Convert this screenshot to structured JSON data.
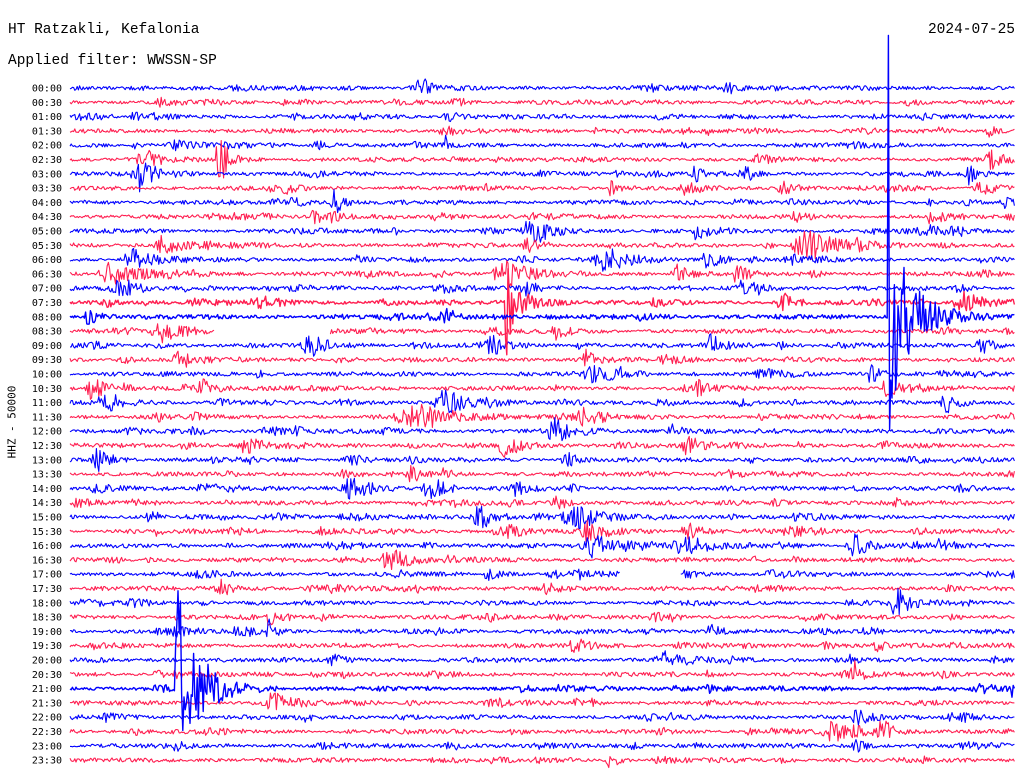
{
  "chart_data": {
    "type": "line",
    "title": "HT Ratzakli, Kefalonia",
    "date": "2024-07-25",
    "subtitle": "Applied filter: WWSSN-SP",
    "ylabel": "HHZ - 50000",
    "xlabel": "",
    "row_minutes": 30,
    "grid": false,
    "legend": "none",
    "colors": [
      "#0000ff",
      "#ff1e50"
    ],
    "rows": [
      "00:00",
      "00:30",
      "01:00",
      "01:30",
      "02:00",
      "02:30",
      "03:00",
      "03:30",
      "04:00",
      "04:30",
      "05:00",
      "05:30",
      "06:00",
      "06:30",
      "07:00",
      "07:30",
      "08:00",
      "08:30",
      "09:00",
      "09:30",
      "10:00",
      "10:30",
      "11:00",
      "11:30",
      "12:00",
      "12:30",
      "13:00",
      "13:30",
      "14:00",
      "14:30",
      "15:00",
      "15:30",
      "16:00",
      "16:30",
      "17:00",
      "17:30",
      "18:00",
      "18:30",
      "19:00",
      "19:30",
      "20:00",
      "20:30",
      "21:00",
      "21:30",
      "22:00",
      "22:30",
      "23:00",
      "23:30"
    ],
    "events": [
      {
        "time": "00:10:57",
        "amp": 6,
        "duration_s": 50
      },
      {
        "time": "00:32:42",
        "amp": 2,
        "duration_s": 40
      },
      {
        "time": "01:27:00",
        "amp": 2,
        "duration_s": 30
      },
      {
        "time": "01:59:03",
        "amp": 3,
        "duration_s": 40
      },
      {
        "time": "02:11:54",
        "amp": 5,
        "duration_s": 6
      },
      {
        "time": "02:34:36",
        "amp": 16,
        "duration_s": 40
      },
      {
        "time": "02:59:03",
        "amp": 6,
        "duration_s": 60
      },
      {
        "time": "03:01:54",
        "amp": 6,
        "duration_s": 90
      },
      {
        "time": "03:19:42",
        "amp": 4,
        "duration_s": 40
      },
      {
        "time": "03:21:24",
        "amp": 6,
        "duration_s": 20
      },
      {
        "time": "03:28:24",
        "amp": 5,
        "duration_s": 40
      },
      {
        "time": "03:47:00",
        "amp": 4,
        "duration_s": 40
      },
      {
        "time": "03:49:22",
        "amp": 4,
        "duration_s": 40
      },
      {
        "time": "03:52:24",
        "amp": 3,
        "duration_s": 60
      },
      {
        "time": "04:08:15",
        "amp": 8,
        "duration_s": 40
      },
      {
        "time": "04:29:31",
        "amp": 4,
        "duration_s": 30
      },
      {
        "time": "04:37:37",
        "amp": 4,
        "duration_s": 40
      },
      {
        "time": "04:57:08",
        "amp": 4,
        "duration_s": 60
      },
      {
        "time": "05:14:17",
        "amp": 6,
        "duration_s": 90
      },
      {
        "time": "05:19:42",
        "amp": 5,
        "duration_s": 60
      },
      {
        "time": "05:27:56",
        "amp": 3,
        "duration_s": 60
      },
      {
        "time": "05:32:32",
        "amp": 5,
        "duration_s": 120
      },
      {
        "time": "05:44:17",
        "amp": 4,
        "duration_s": 60
      },
      {
        "time": "05:52:51",
        "amp": 8,
        "duration_s": 150
      },
      {
        "time": "06:01:35",
        "amp": 5,
        "duration_s": 120
      },
      {
        "time": "06:16:30",
        "amp": 5,
        "duration_s": 120
      },
      {
        "time": "06:20:00",
        "amp": 4,
        "duration_s": 60
      },
      {
        "time": "06:30:48",
        "amp": 5,
        "duration_s": 120
      },
      {
        "time": "06:43:20",
        "amp": 6,
        "duration_s": 120
      },
      {
        "time": "06:49:03",
        "amp": 5,
        "duration_s": 60
      },
      {
        "time": "06:50:57",
        "amp": 4,
        "duration_s": 60
      },
      {
        "time": "07:01:16",
        "amp": 6,
        "duration_s": 90
      },
      {
        "time": "07:14:17",
        "amp": 4,
        "duration_s": 60
      },
      {
        "time": "07:21:07",
        "amp": 4,
        "duration_s": 60
      },
      {
        "time": "07:43:49",
        "amp": 50,
        "duration_s": 70
      },
      {
        "time": "07:52:24",
        "amp": 5,
        "duration_s": 60
      },
      {
        "time": "07:57:56",
        "amp": 5,
        "duration_s": 120
      },
      {
        "time": "08:00:19",
        "amp": 5,
        "duration_s": 60
      },
      {
        "time": "08:25:58",
        "amp": 170,
        "duration_s": 90
      },
      {
        "time": "08:32:32",
        "amp": 5,
        "duration_s": 120
      },
      {
        "time": "08:45:14",
        "amp": 4,
        "duration_s": 60
      },
      {
        "time": "09:07:18",
        "amp": 6,
        "duration_s": 90
      },
      {
        "time": "09:13:10",
        "amp": 5,
        "duration_s": 60
      },
      {
        "time": "09:20:10",
        "amp": 6,
        "duration_s": 60
      },
      {
        "time": "09:28:44",
        "amp": 4,
        "duration_s": 60
      },
      {
        "time": "09:33:10",
        "amp": 4,
        "duration_s": 60
      },
      {
        "time": "09:46:11",
        "amp": 5,
        "duration_s": 60
      },
      {
        "time": "10:16:11",
        "amp": 5,
        "duration_s": 120
      },
      {
        "time": "10:25:14",
        "amp": 5,
        "duration_s": 60
      },
      {
        "time": "10:30:29",
        "amp": 6,
        "duration_s": 60
      },
      {
        "time": "10:33:58",
        "amp": 5,
        "duration_s": 60
      },
      {
        "time": "10:49:42",
        "amp": 4,
        "duration_s": 60
      },
      {
        "time": "10:55:43",
        "amp": 5,
        "duration_s": 60
      },
      {
        "time": "11:00:48",
        "amp": 6,
        "duration_s": 90
      },
      {
        "time": "11:11:26",
        "amp": 7,
        "duration_s": 120
      },
      {
        "time": "11:27:37",
        "amp": 6,
        "duration_s": 60
      },
      {
        "time": "11:40:10",
        "amp": 6,
        "duration_s": 240
      },
      {
        "time": "11:46:02",
        "amp": 4,
        "duration_s": 60
      },
      {
        "time": "12:15:05",
        "amp": 6,
        "duration_s": 90
      },
      {
        "time": "12:18:53",
        "amp": 4,
        "duration_s": 60
      },
      {
        "time": "12:35:14",
        "amp": 5,
        "duration_s": 90
      },
      {
        "time": "12:43:30",
        "amp": 5,
        "duration_s": 90
      },
      {
        "time": "12:49:22",
        "amp": 5,
        "duration_s": 60
      },
      {
        "time": "13:00:38",
        "amp": 6,
        "duration_s": 70
      },
      {
        "time": "13:15:33",
        "amp": 4,
        "duration_s": 60
      },
      {
        "time": "13:40:38",
        "amp": 4,
        "duration_s": 60
      },
      {
        "time": "14:08:34",
        "amp": 6,
        "duration_s": 90
      },
      {
        "time": "14:11:07",
        "amp": 6,
        "duration_s": 90
      },
      {
        "time": "14:13:58",
        "amp": 4,
        "duration_s": 60
      },
      {
        "time": "14:45:14",
        "amp": 4,
        "duration_s": 60
      },
      {
        "time": "15:02:23",
        "amp": 4,
        "duration_s": 60
      },
      {
        "time": "15:12:42",
        "amp": 6,
        "duration_s": 90
      },
      {
        "time": "15:15:33",
        "amp": 7,
        "duration_s": 120
      },
      {
        "time": "15:43:20",
        "amp": 6,
        "duration_s": 90
      },
      {
        "time": "15:46:11",
        "amp": 6,
        "duration_s": 90
      },
      {
        "time": "15:49:22",
        "amp": 5,
        "duration_s": 60
      },
      {
        "time": "16:16:11",
        "amp": 6,
        "duration_s": 120
      },
      {
        "time": "16:19:03",
        "amp": 5,
        "duration_s": 120
      },
      {
        "time": "16:24:36",
        "amp": 6,
        "duration_s": 90
      },
      {
        "time": "16:27:27",
        "amp": 4,
        "duration_s": 60
      },
      {
        "time": "16:39:50",
        "amp": 7,
        "duration_s": 90
      },
      {
        "time": "17:13:01",
        "amp": 3,
        "duration_s": 60
      },
      {
        "time": "17:44:57",
        "amp": 3,
        "duration_s": 60
      },
      {
        "time": "18:26:02",
        "amp": 8,
        "duration_s": 60
      },
      {
        "time": "18:36:11",
        "amp": 4,
        "duration_s": 40
      },
      {
        "time": "19:06:11",
        "amp": 6,
        "duration_s": 40
      },
      {
        "time": "19:20:10",
        "amp": 4,
        "duration_s": 60
      },
      {
        "time": "19:55:24",
        "amp": 3,
        "duration_s": 60
      },
      {
        "time": "20:18:25",
        "amp": 4,
        "duration_s": 120
      },
      {
        "time": "20:54:46",
        "amp": 6,
        "duration_s": 40
      },
      {
        "time": "21:03:20",
        "amp": 140,
        "duration_s": 90
      },
      {
        "time": "21:29:47",
        "amp": 4,
        "duration_s": 30
      },
      {
        "time": "21:36:06",
        "amp": 6,
        "duration_s": 90
      },
      {
        "time": "22:24:46",
        "amp": 4,
        "duration_s": 60
      },
      {
        "time": "22:53:49",
        "amp": 6,
        "duration_s": 120
      },
      {
        "time": "22:55:33",
        "amp": 5,
        "duration_s": 60
      },
      {
        "time": "23:24:46",
        "amp": 3,
        "duration_s": 60
      },
      {
        "time": "23:47:00",
        "amp": 4,
        "duration_s": 30
      }
    ],
    "gaps": [
      {
        "start": "08:34:36",
        "end": "08:38:15"
      },
      {
        "start": "17:17:28",
        "end": "17:19:22"
      }
    ]
  }
}
